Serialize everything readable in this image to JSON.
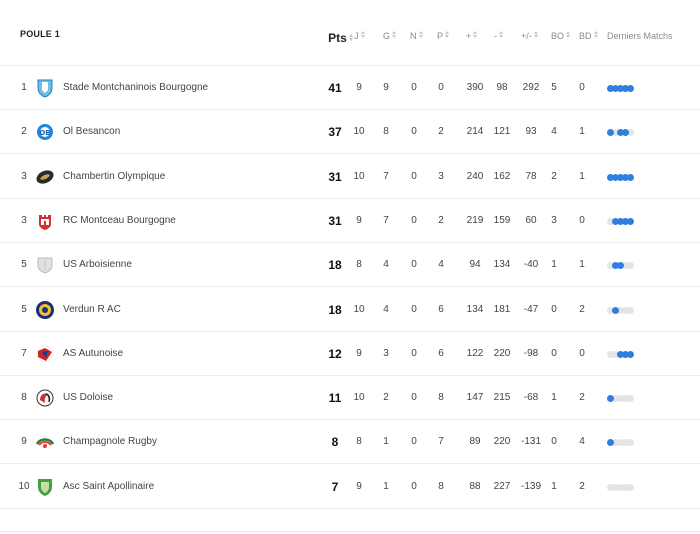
{
  "pool_title": "POULE 1",
  "columns": {
    "pts": "Pts",
    "j": "J",
    "g": "G",
    "n": "N",
    "p": "P",
    "plus": "+",
    "minus": "-",
    "diff": "+/-",
    "bo": "BO",
    "bd": "BD",
    "last": "Derniers Matchs"
  },
  "colors": {
    "win": "#2f7fe0",
    "neutral": "#e4e4e4"
  },
  "teams": [
    {
      "rank": "1",
      "name": "Stade Montchaninois Bourgogne",
      "pts": "41",
      "j": "9",
      "g": "9",
      "n": "0",
      "p": "0",
      "plus": "390",
      "minus": "98",
      "diff": "292",
      "bo": "5",
      "bd": "0",
      "logo": "shield-icon",
      "form": [
        "W",
        "W",
        "W",
        "W",
        "W"
      ]
    },
    {
      "rank": "2",
      "name": "Ol Besancon",
      "pts": "37",
      "j": "10",
      "g": "8",
      "n": "0",
      "p": "2",
      "plus": "214",
      "minus": "121",
      "diff": "93",
      "bo": "4",
      "bd": "1",
      "logo": "ob-logo",
      "form": [
        "W",
        "L",
        "W",
        "W",
        "L"
      ]
    },
    {
      "rank": "3",
      "name": "Chambertin Olympique",
      "pts": "31",
      "j": "10",
      "g": "7",
      "n": "0",
      "p": "3",
      "plus": "240",
      "minus": "162",
      "diff": "78",
      "bo": "2",
      "bd": "1",
      "logo": "ball-logo",
      "form": [
        "W",
        "W",
        "W",
        "W",
        "W"
      ]
    },
    {
      "rank": "3",
      "name": "RC Montceau Bourgogne",
      "pts": "31",
      "j": "9",
      "g": "7",
      "n": "0",
      "p": "2",
      "plus": "219",
      "minus": "159",
      "diff": "60",
      "bo": "3",
      "bd": "0",
      "logo": "castle-logo",
      "form": [
        "L",
        "W",
        "W",
        "W",
        "W"
      ]
    },
    {
      "rank": "5",
      "name": "US Arboisienne",
      "pts": "18",
      "j": "8",
      "g": "4",
      "n": "0",
      "p": "4",
      "plus": "94",
      "minus": "134",
      "diff": "-40",
      "bo": "1",
      "bd": "1",
      "logo": "grey-shield-logo",
      "form": [
        "L",
        "W",
        "W",
        "L",
        "L"
      ]
    },
    {
      "rank": "5",
      "name": "Verdun R AC",
      "pts": "18",
      "j": "10",
      "g": "4",
      "n": "0",
      "p": "6",
      "plus": "134",
      "minus": "181",
      "diff": "-47",
      "bo": "0",
      "bd": "2",
      "logo": "round-badge-logo",
      "form": [
        "L",
        "W",
        "L",
        "L",
        "L"
      ]
    },
    {
      "rank": "7",
      "name": "AS Autunoise",
      "pts": "12",
      "j": "9",
      "g": "3",
      "n": "0",
      "p": "6",
      "plus": "122",
      "minus": "220",
      "diff": "-98",
      "bo": "0",
      "bd": "0",
      "logo": "flag-logo",
      "form": [
        "L",
        "L",
        "W",
        "W",
        "W"
      ]
    },
    {
      "rank": "8",
      "name": "US Doloise",
      "pts": "11",
      "j": "10",
      "g": "2",
      "n": "0",
      "p": "8",
      "plus": "147",
      "minus": "215",
      "diff": "-68",
      "bo": "1",
      "bd": "2",
      "logo": "helmet-logo",
      "form": [
        "W",
        "L",
        "L",
        "L",
        "L"
      ]
    },
    {
      "rank": "9",
      "name": "Champagnole Rugby",
      "pts": "8",
      "j": "8",
      "g": "1",
      "n": "0",
      "p": "7",
      "plus": "89",
      "minus": "220",
      "diff": "-131",
      "bo": "0",
      "bd": "4",
      "logo": "arc-logo",
      "form": [
        "W",
        "L",
        "L",
        "L",
        "L"
      ]
    },
    {
      "rank": "10",
      "name": "Asc Saint Apollinaire",
      "pts": "7",
      "j": "9",
      "g": "1",
      "n": "0",
      "p": "8",
      "plus": "88",
      "minus": "227",
      "diff": "-139",
      "bo": "1",
      "bd": "2",
      "logo": "green-shield-logo",
      "form": [
        "L",
        "L",
        "L",
        "L",
        "L"
      ]
    }
  ]
}
